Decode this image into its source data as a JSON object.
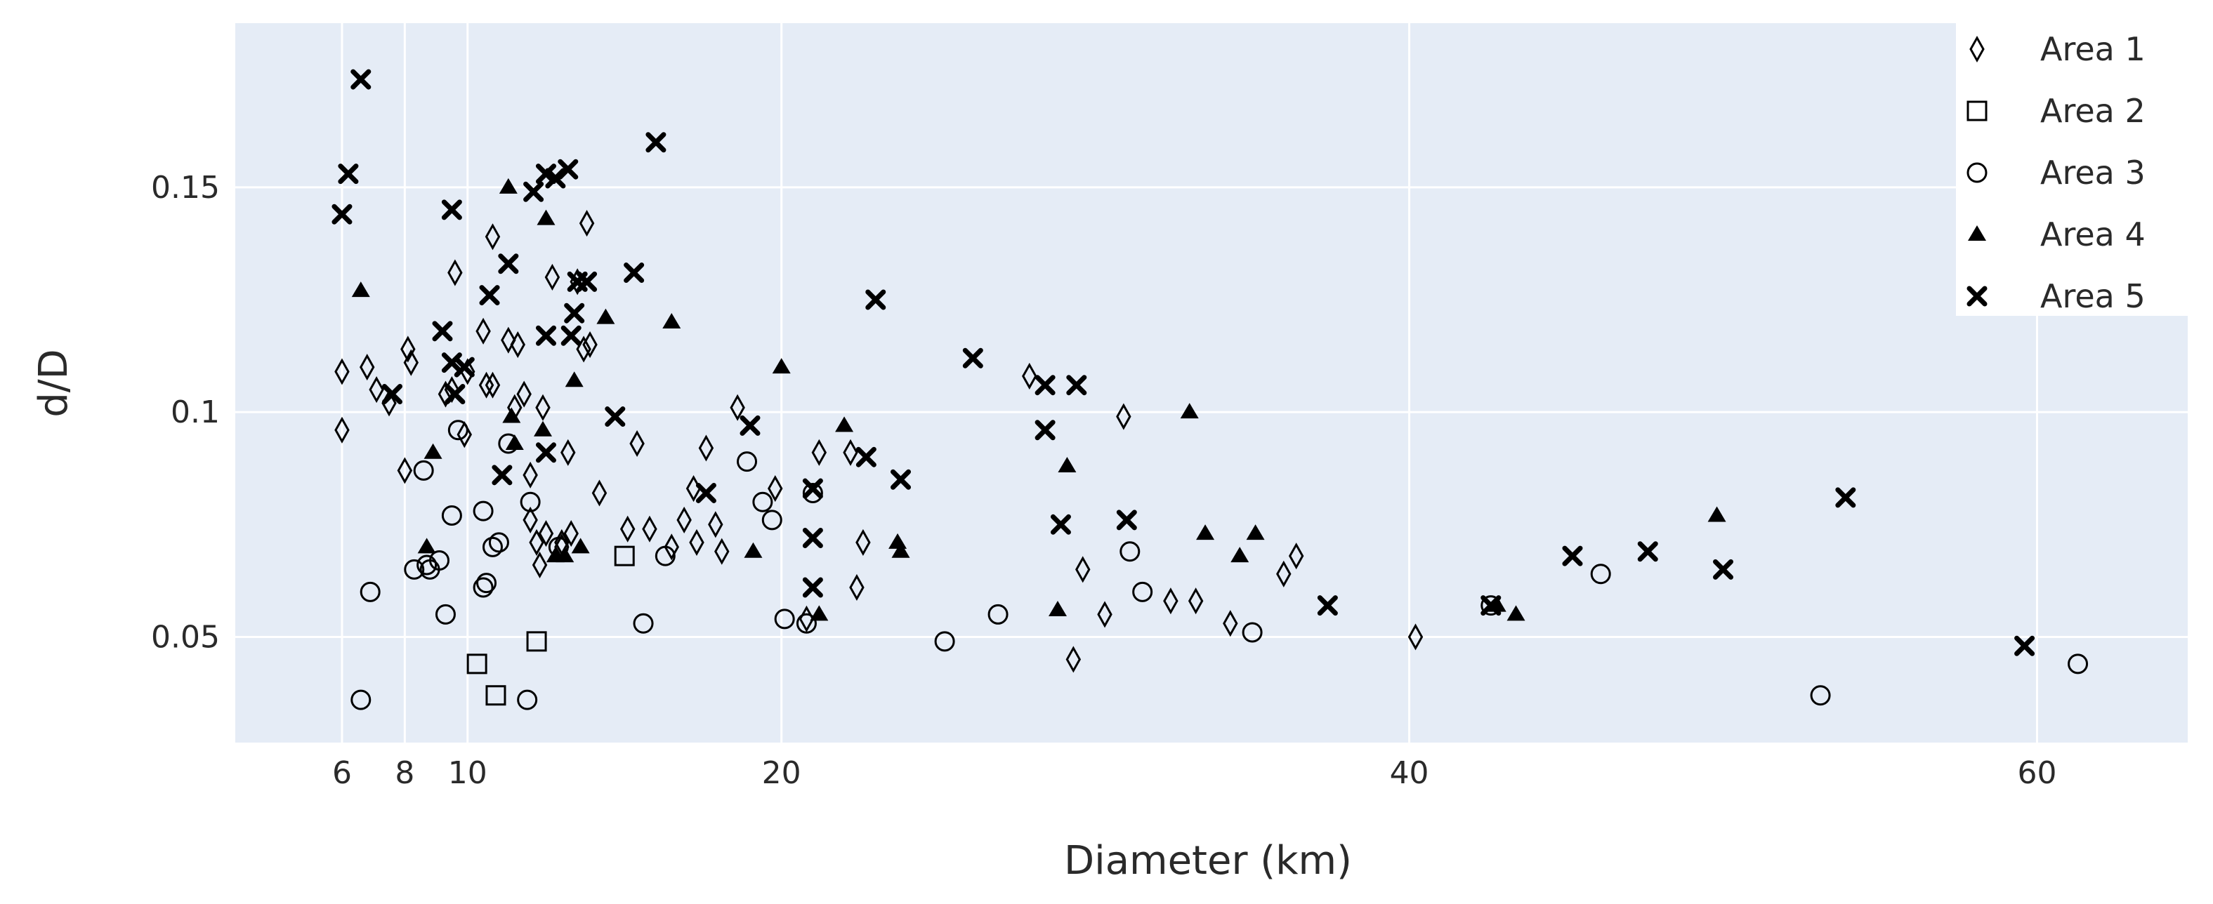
{
  "chart_data": {
    "type": "scatter",
    "xlabel": "Diameter (km)",
    "ylabel": "d/D",
    "xlim": [
      2.6,
      64.8
    ],
    "ylim": [
      0.0265,
      0.1865
    ],
    "xticks": [
      {
        "value": 6,
        "label": "6"
      },
      {
        "value": 8,
        "label": "8"
      },
      {
        "value": 10,
        "label": "10"
      },
      {
        "value": 20,
        "label": "20"
      },
      {
        "value": 40,
        "label": "40"
      },
      {
        "value": 60,
        "label": "60"
      }
    ],
    "yticks": [
      {
        "value": 0.05,
        "label": "0.05"
      },
      {
        "value": 0.1,
        "label": "0.1"
      },
      {
        "value": 0.15,
        "label": "0.15"
      }
    ],
    "grid": true,
    "legend_position": "top-right",
    "colors": {
      "plot_background": "#e5ecf6",
      "grid": "#ffffff",
      "marker": "#000000",
      "text": "#2a2a2a"
    },
    "series": [
      {
        "name": "Area 1",
        "marker": "diamond-open",
        "points": [
          [
            6.0,
            0.096
          ],
          [
            6.0,
            0.109
          ],
          [
            6.8,
            0.11
          ],
          [
            7.1,
            0.105
          ],
          [
            7.5,
            0.102
          ],
          [
            8.1,
            0.114
          ],
          [
            8.2,
            0.111
          ],
          [
            8.0,
            0.087
          ],
          [
            9.3,
            0.104
          ],
          [
            9.5,
            0.105
          ],
          [
            9.6,
            0.131
          ],
          [
            9.9,
            0.095
          ],
          [
            10.0,
            0.109
          ],
          [
            10.5,
            0.118
          ],
          [
            10.6,
            0.106
          ],
          [
            10.8,
            0.106
          ],
          [
            10.8,
            0.139
          ],
          [
            11.3,
            0.116
          ],
          [
            11.5,
            0.101
          ],
          [
            11.6,
            0.115
          ],
          [
            11.8,
            0.104
          ],
          [
            12.0,
            0.086
          ],
          [
            12.0,
            0.076
          ],
          [
            12.2,
            0.071
          ],
          [
            12.3,
            0.066
          ],
          [
            12.4,
            0.101
          ],
          [
            12.5,
            0.073
          ],
          [
            12.7,
            0.13
          ],
          [
            13.0,
            0.07
          ],
          [
            13.2,
            0.091
          ],
          [
            13.0,
            0.071
          ],
          [
            13.3,
            0.073
          ],
          [
            13.5,
            0.129
          ],
          [
            13.7,
            0.114
          ],
          [
            13.8,
            0.142
          ],
          [
            13.9,
            0.115
          ],
          [
            14.2,
            0.082
          ],
          [
            15.1,
            0.074
          ],
          [
            15.4,
            0.093
          ],
          [
            15.8,
            0.074
          ],
          [
            16.5,
            0.07
          ],
          [
            16.9,
            0.076
          ],
          [
            17.2,
            0.083
          ],
          [
            17.3,
            0.071
          ],
          [
            17.6,
            0.092
          ],
          [
            17.9,
            0.075
          ],
          [
            18.1,
            0.069
          ],
          [
            18.6,
            0.101
          ],
          [
            19.8,
            0.083
          ],
          [
            20.8,
            0.054
          ],
          [
            21.2,
            0.091
          ],
          [
            22.2,
            0.091
          ],
          [
            22.4,
            0.061
          ],
          [
            22.6,
            0.071
          ],
          [
            27.9,
            0.108
          ],
          [
            29.3,
            0.045
          ],
          [
            29.6,
            0.065
          ],
          [
            30.3,
            0.055
          ],
          [
            30.9,
            0.099
          ],
          [
            32.4,
            0.058
          ],
          [
            33.2,
            0.058
          ],
          [
            34.3,
            0.053
          ],
          [
            36.0,
            0.064
          ],
          [
            36.4,
            0.068
          ],
          [
            40.2,
            0.05
          ]
        ]
      },
      {
        "name": "Area 2",
        "marker": "square-open",
        "points": [
          [
            10.3,
            0.044
          ],
          [
            10.9,
            0.037
          ],
          [
            12.2,
            0.049
          ],
          [
            15.0,
            0.068
          ]
        ]
      },
      {
        "name": "Area 3",
        "marker": "circle-open",
        "points": [
          [
            6.6,
            0.036
          ],
          [
            6.9,
            0.06
          ],
          [
            8.3,
            0.065
          ],
          [
            8.7,
            0.066
          ],
          [
            8.6,
            0.087
          ],
          [
            8.8,
            0.065
          ],
          [
            9.1,
            0.067
          ],
          [
            9.3,
            0.055
          ],
          [
            9.5,
            0.077
          ],
          [
            9.7,
            0.096
          ],
          [
            10.5,
            0.078
          ],
          [
            10.6,
            0.062
          ],
          [
            10.5,
            0.061
          ],
          [
            10.8,
            0.07
          ],
          [
            11.0,
            0.071
          ],
          [
            11.3,
            0.093
          ],
          [
            11.9,
            0.036
          ],
          [
            12.0,
            0.08
          ],
          [
            12.9,
            0.07
          ],
          [
            15.6,
            0.053
          ],
          [
            16.3,
            0.068
          ],
          [
            18.9,
            0.089
          ],
          [
            19.4,
            0.08
          ],
          [
            19.7,
            0.076
          ],
          [
            20.1,
            0.054
          ],
          [
            20.8,
            0.053
          ],
          [
            21.0,
            0.082
          ],
          [
            25.2,
            0.049
          ],
          [
            26.9,
            0.055
          ],
          [
            31.1,
            0.069
          ],
          [
            31.5,
            0.06
          ],
          [
            35.0,
            0.051
          ],
          [
            42.6,
            0.057
          ],
          [
            46.1,
            0.064
          ],
          [
            53.1,
            0.037
          ],
          [
            61.3,
            0.044
          ]
        ]
      },
      {
        "name": "Area 4",
        "marker": "triangle-up",
        "points": [
          [
            6.6,
            0.127
          ],
          [
            8.9,
            0.091
          ],
          [
            8.7,
            0.07
          ],
          [
            11.3,
            0.15
          ],
          [
            11.4,
            0.099
          ],
          [
            11.5,
            0.093
          ],
          [
            12.4,
            0.096
          ],
          [
            12.5,
            0.143
          ],
          [
            12.8,
            0.068
          ],
          [
            13.1,
            0.068
          ],
          [
            13.4,
            0.107
          ],
          [
            13.6,
            0.07
          ],
          [
            14.4,
            0.121
          ],
          [
            16.5,
            0.12
          ],
          [
            19.1,
            0.069
          ],
          [
            20.0,
            0.11
          ],
          [
            21.2,
            0.055
          ],
          [
            22.0,
            0.097
          ],
          [
            23.7,
            0.071
          ],
          [
            23.8,
            0.069
          ],
          [
            28.8,
            0.056
          ],
          [
            29.1,
            0.088
          ],
          [
            33.0,
            0.1
          ],
          [
            33.5,
            0.073
          ],
          [
            34.6,
            0.068
          ],
          [
            35.1,
            0.073
          ],
          [
            42.8,
            0.057
          ],
          [
            43.4,
            0.055
          ],
          [
            49.8,
            0.077
          ]
        ]
      },
      {
        "name": "Area 5",
        "marker": "x-thin",
        "points": [
          [
            6.0,
            0.144
          ],
          [
            6.2,
            0.153
          ],
          [
            6.6,
            0.174
          ],
          [
            7.6,
            0.104
          ],
          [
            9.2,
            0.118
          ],
          [
            9.5,
            0.145
          ],
          [
            9.5,
            0.111
          ],
          [
            9.9,
            0.11
          ],
          [
            9.6,
            0.104
          ],
          [
            10.7,
            0.126
          ],
          [
            11.1,
            0.086
          ],
          [
            11.3,
            0.133
          ],
          [
            12.1,
            0.149
          ],
          [
            12.5,
            0.153
          ],
          [
            12.5,
            0.117
          ],
          [
            12.5,
            0.091
          ],
          [
            12.8,
            0.152
          ],
          [
            13.2,
            0.154
          ],
          [
            13.5,
            0.129
          ],
          [
            13.4,
            0.122
          ],
          [
            13.3,
            0.117
          ],
          [
            13.8,
            0.129
          ],
          [
            14.7,
            0.099
          ],
          [
            15.3,
            0.131
          ],
          [
            16.0,
            0.16
          ],
          [
            17.6,
            0.082
          ],
          [
            19.0,
            0.097
          ],
          [
            21.0,
            0.083
          ],
          [
            21.0,
            0.072
          ],
          [
            21.0,
            0.061
          ],
          [
            22.7,
            0.09
          ],
          [
            23.0,
            0.125
          ],
          [
            23.8,
            0.085
          ],
          [
            26.1,
            0.112
          ],
          [
            28.4,
            0.106
          ],
          [
            28.4,
            0.096
          ],
          [
            28.9,
            0.075
          ],
          [
            29.4,
            0.106
          ],
          [
            31.0,
            0.076
          ],
          [
            37.4,
            0.057
          ],
          [
            42.6,
            0.057
          ],
          [
            45.2,
            0.068
          ],
          [
            47.6,
            0.069
          ],
          [
            50.0,
            0.065
          ],
          [
            53.9,
            0.081
          ],
          [
            59.6,
            0.048
          ]
        ]
      }
    ]
  }
}
